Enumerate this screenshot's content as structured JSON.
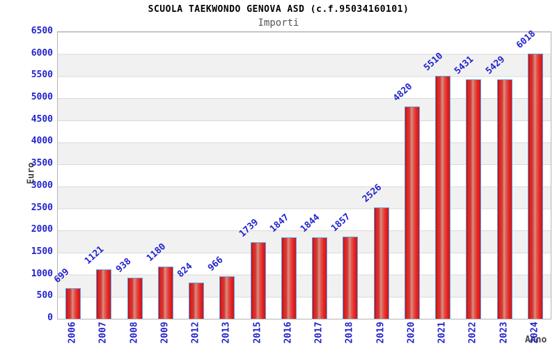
{
  "header": {
    "title": "SCUOLA TAEKWONDO GENOVA ASD (c.f.95034160101)",
    "subtitle": "Importi"
  },
  "axes": {
    "y_title": "Euro",
    "x_title": "Anno",
    "y_ticks": [
      6500,
      6000,
      5500,
      5000,
      4500,
      4000,
      3500,
      3000,
      2500,
      2000,
      1500,
      1000,
      500,
      0
    ]
  },
  "chart_data": {
    "type": "bar",
    "title": "SCUOLA TAEKWONDO GENOVA ASD (c.f.95034160101)",
    "subtitle": "Importi",
    "xlabel": "Anno",
    "ylabel": "Euro",
    "categories": [
      "2006",
      "2007",
      "2008",
      "2009",
      "2012",
      "2013",
      "2015",
      "2016",
      "2017",
      "2018",
      "2019",
      "2020",
      "2021",
      "2022",
      "2023",
      "2024"
    ],
    "values": [
      699,
      1121,
      938,
      1180,
      824,
      966,
      1739,
      1847,
      1844,
      1857,
      2526,
      4820,
      5510,
      5431,
      5429,
      6018
    ],
    "ylim": [
      0,
      6500
    ],
    "ytick_step": 500,
    "grid": "horizontal gridlines with alternating white/gray bands",
    "legend_position": "none",
    "data_labels": "above each bar, rotated 45deg",
    "x_labels_rotation": -90
  },
  "colors": {
    "label_blue": "#2323cd",
    "bar_red_dark": "#b01414",
    "bar_red_bright": "#e62222",
    "bar_red_light": "#de8d80",
    "bar_border_blue": "#5ea0e6",
    "band_gray": "#f1f1f1",
    "gridline_gray": "#d9d9d9",
    "plot_border_gray": "#b3b3b3",
    "title_black": "#000000",
    "subtitle_gray": "#555555",
    "axis_title_gray": "#444444",
    "background": "#ffffff"
  }
}
